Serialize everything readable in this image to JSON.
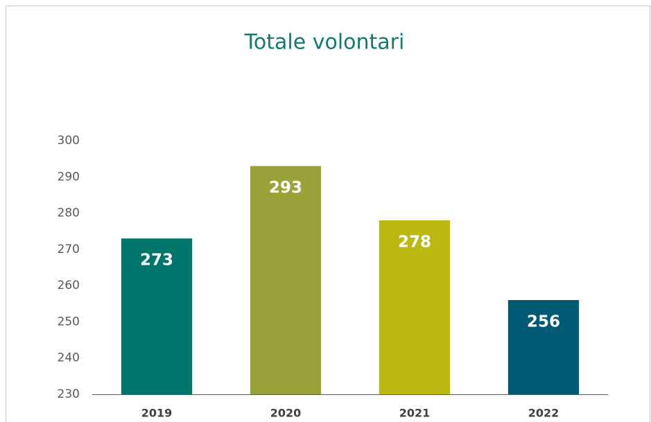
{
  "chart_data": {
    "type": "bar",
    "title": "Totale volontari",
    "categories": [
      "2019",
      "2020",
      "2021",
      "2022"
    ],
    "values": [
      273,
      293,
      278,
      256
    ],
    "colors": [
      "#00756b",
      "#9ba23a",
      "#bbb812",
      "#005a74"
    ],
    "ylim": [
      230,
      300
    ],
    "yticks": [
      230,
      240,
      250,
      260,
      270,
      280,
      290,
      300
    ],
    "grid": false
  }
}
